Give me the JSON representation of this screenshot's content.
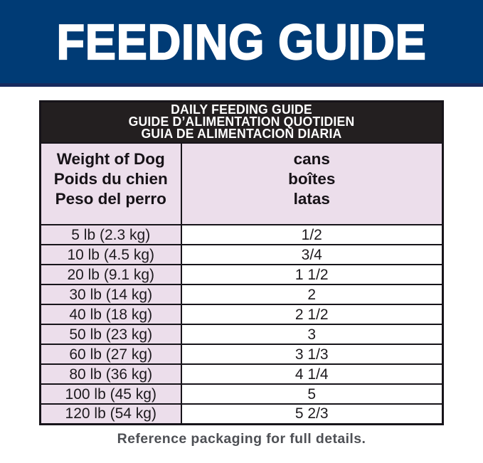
{
  "banner": {
    "title": "FEEDING GUIDE",
    "bg_color": "#003b75",
    "text_color": "#ffffff"
  },
  "table": {
    "title_lines": [
      "DAILY FEEDING GUIDE",
      "GUIDE D’ALIMENTATION QUOTIDIEN",
      "GUIA DE ALIMENTACION DIARIA"
    ],
    "columns": [
      {
        "header_lines": [
          "Weight of Dog",
          "Poids du chien",
          "Peso del perro"
        ]
      },
      {
        "header_lines": [
          "cans",
          "boîtes",
          "latas"
        ]
      }
    ],
    "rows": [
      {
        "weight": "5 lb (2.3 kg)",
        "cans": "1/2"
      },
      {
        "weight": "10 lb (4.5 kg)",
        "cans": "3/4"
      },
      {
        "weight": "20 lb (9.1 kg)",
        "cans": "1 1/2"
      },
      {
        "weight": "30 lb (14 kg)",
        "cans": "2"
      },
      {
        "weight": "40 lb (18 kg)",
        "cans": "2 1/2"
      },
      {
        "weight": "50 lb (23 kg)",
        "cans": "3"
      },
      {
        "weight": "60 lb (27 kg)",
        "cans": "3 1/3"
      },
      {
        "weight": "80 lb (36 kg)",
        "cans": "4 1/4"
      },
      {
        "weight": "100 lb (45 kg)",
        "cans": "5"
      },
      {
        "weight": "120 lb (54 kg)",
        "cans": "5 2/3"
      }
    ],
    "colors": {
      "title_bg": "#231f20",
      "title_text": "#ffffff",
      "cell_pink": "#ecdeeb",
      "cell_white": "#ffffff",
      "border": "#17141a"
    }
  },
  "footer": {
    "note": "Reference packaging for full details."
  }
}
